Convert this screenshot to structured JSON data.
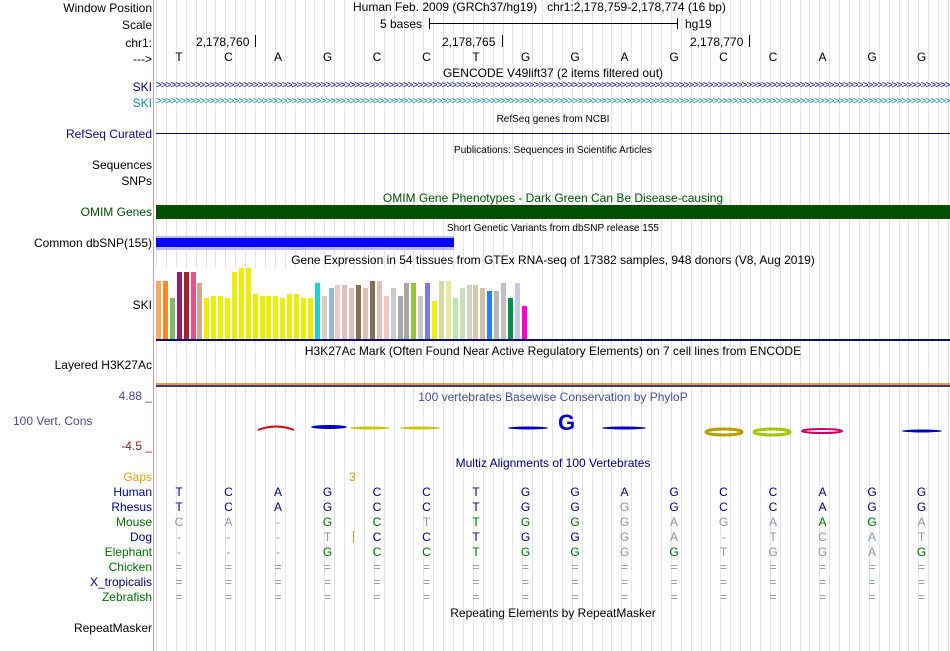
{
  "header": {
    "window_position_label": "Window Position",
    "assembly_text": "Human Feb. 2009 (GRCh37/hg19)",
    "position_text": "chr1:2,178,759-2,178,774 (16 bp)",
    "scale_label": "Scale",
    "scale_text": "5 bases",
    "scale_db": "hg19",
    "chr_label": "chr1:",
    "chr_ticks": [
      "2,178,760",
      "2,178,765",
      "2,178,770"
    ],
    "strand_label": "--->",
    "bases": [
      "T",
      "C",
      "A",
      "G",
      "C",
      "C",
      "T",
      "G",
      "G",
      "A",
      "G",
      "C",
      "C",
      "A",
      "G",
      "G"
    ]
  },
  "tracks": {
    "gencode_title": "GENCODE V49lift37 (2 items filtered out)",
    "gencode_items": [
      "SKI",
      "SKI"
    ],
    "refseq_label": "RefSeq Curated",
    "refseq_title": "RefSeq genes from NCBI",
    "pubs_title": "Publications: Sequences in Scientific Articles",
    "sequences_label": "Sequences",
    "snps_label": "SNPs",
    "omim_title": "OMIM Gene Phenotypes - Dark Green Can Be Disease-causing",
    "omim_label": "OMIM Genes",
    "dbsnp_title": "Short Genetic Variants from dbSNP release 155",
    "dbsnp_label": "Common dbSNP(155)",
    "gtex_title": "Gene Expression in 54 tissues from GTEx RNA-seq of 17382 samples, 948 donors (V8, Aug 2019)",
    "gtex_label": "SKI",
    "h3k27_title": "H3K27Ac Mark (Often Found Near Active Regulatory Elements) on 7 cell lines from ENCODE",
    "h3k27_label": "Layered H3K27Ac",
    "phylop_title": "100 vertebrates Basewise Conservation by PhyloP",
    "phylop_max": "4.88 _",
    "phylop_label": "100 Vert. Cons",
    "phylop_min": "-4.5 _",
    "multiz_title": "Multiz Alignments of 100 Vertebrates",
    "gaps_label": "Gaps",
    "gaps_value": "3",
    "repeat_title": "Repeating Elements by RepeatMasker",
    "repeat_label": "RepeatMasker"
  },
  "gtex_values": [
    0.82,
    0.82,
    0.58,
    0.95,
    0.95,
    0.95,
    0.79,
    0.58,
    0.61,
    0.61,
    0.58,
    0.95,
    1.0,
    1.0,
    0.64,
    0.61,
    0.61,
    0.61,
    0.58,
    0.64,
    0.64,
    0.58,
    0.58,
    0.79,
    0.61,
    0.72,
    0.76,
    0.76,
    0.72,
    0.76,
    0.72,
    0.82,
    0.82,
    0.61,
    0.72,
    0.61,
    0.79,
    0.79,
    0.61,
    0.79,
    0.54,
    0.82,
    0.82,
    0.58,
    0.72,
    0.76,
    0.76,
    0.72,
    0.68,
    0.68,
    0.79,
    0.58,
    0.79,
    0.47
  ],
  "gtex_colors": [
    "#f4a95b",
    "#f68b23",
    "#7eb670",
    "#9b1f68",
    "#ad1f2b",
    "#e8508b",
    "#ccaa8c",
    "#eeee00",
    "#eeee00",
    "#eeee00",
    "#eeee00",
    "#eeee00",
    "#eeee00",
    "#eeee00",
    "#eeee00",
    "#eeee00",
    "#eeee00",
    "#eeee00",
    "#eeee00",
    "#eeee00",
    "#eeee00",
    "#eeee00",
    "#eeee00",
    "#1fd1d1",
    "#d8cfc1",
    "#94b9d6",
    "#f0c8c4",
    "#e0c0bc",
    "#e0c0bc",
    "#8a6e52",
    "#e0c0bc",
    "#8a6e52",
    "#e0c0bc",
    "#f2c8c0",
    "#c4d0d0",
    "#a8a8a8",
    "#a8a8a8",
    "#99c43a",
    "#c8c8c8",
    "#7777ff",
    "#f4f000",
    "#d8d8a8",
    "#e8e8a0",
    "#b8e8b0",
    "#c8e0c0",
    "#d8d0c8",
    "#d8c8b0",
    "#d0c0a8",
    "#2a7fff",
    "#b8b8b8",
    "#c0c0c0",
    "#009050",
    "#c8c8e8",
    "#ff00cc"
  ],
  "multiz": [
    {
      "name": "Human",
      "color": "#000080",
      "bases": [
        "T",
        "C",
        "A",
        "G",
        "C",
        "C",
        "T",
        "G",
        "G",
        "A",
        "G",
        "C",
        "C",
        "A",
        "G",
        "G"
      ],
      "shade": [
        0,
        0,
        0,
        0,
        0,
        0,
        0,
        0,
        0,
        0,
        0,
        0,
        0,
        0,
        0,
        0
      ]
    },
    {
      "name": "Rhesus",
      "color": "#000080",
      "bases": [
        "T",
        "C",
        "A",
        "G",
        "C",
        "C",
        "T",
        "G",
        "G",
        "G",
        "G",
        "C",
        "C",
        "A",
        "G",
        "G"
      ],
      "shade": [
        0,
        0,
        0,
        0,
        0,
        0,
        0,
        0,
        0,
        1,
        0,
        0,
        0,
        0,
        0,
        0
      ]
    },
    {
      "name": "Mouse",
      "color": "#007000",
      "bases": [
        "C",
        "A",
        "-",
        "G",
        "C",
        "T",
        "T",
        "G",
        "G",
        "G",
        "A",
        "G",
        "A",
        "A",
        "G",
        "A"
      ],
      "shade": [
        1,
        1,
        1,
        0,
        0,
        1,
        0,
        0,
        0,
        1,
        1,
        1,
        1,
        0,
        0,
        1
      ]
    },
    {
      "name": "Dog",
      "color": "#000080",
      "bases": [
        "-",
        "-",
        "-",
        "T",
        "C",
        "C",
        "T",
        "G",
        "G",
        "G",
        "A",
        "-",
        "T",
        "C",
        "A",
        "T"
      ],
      "shade": [
        1,
        1,
        1,
        1,
        0,
        0,
        0,
        0,
        0,
        1,
        1,
        1,
        1,
        1,
        1,
        1
      ]
    },
    {
      "name": "Elephant",
      "color": "#007000",
      "bases": [
        "-",
        "-",
        "-",
        "G",
        "C",
        "C",
        "T",
        "G",
        "G",
        "G",
        "G",
        "T",
        "G",
        "G",
        "A",
        "G"
      ],
      "shade": [
        1,
        1,
        1,
        0,
        0,
        0,
        0,
        0,
        0,
        1,
        0,
        1,
        1,
        1,
        1,
        0
      ]
    },
    {
      "name": "Chicken",
      "color": "#007000",
      "bases": [
        "=",
        "=",
        "=",
        "=",
        "=",
        "=",
        "=",
        "=",
        "=",
        "=",
        "=",
        "=",
        "=",
        "=",
        "=",
        "="
      ],
      "shade": [
        1,
        1,
        1,
        1,
        1,
        1,
        1,
        1,
        1,
        1,
        1,
        1,
        1,
        1,
        1,
        1
      ]
    },
    {
      "name": "X_tropicalis",
      "color": "#000080",
      "bases": [
        "=",
        "=",
        "=",
        "=",
        "=",
        "=",
        "=",
        "=",
        "=",
        "=",
        "=",
        "=",
        "=",
        "=",
        "=",
        "="
      ],
      "shade": [
        1,
        1,
        1,
        1,
        1,
        1,
        1,
        1,
        1,
        1,
        1,
        1,
        1,
        1,
        1,
        1
      ]
    },
    {
      "name": "Zebrafish",
      "color": "#007000",
      "bases": [
        "=",
        "=",
        "=",
        "=",
        "=",
        "=",
        "=",
        "=",
        "=",
        "=",
        "=",
        "=",
        "=",
        "=",
        "=",
        "="
      ],
      "shade": [
        1,
        1,
        1,
        1,
        1,
        1,
        1,
        1,
        1,
        1,
        1,
        1,
        1,
        1,
        1,
        1
      ]
    }
  ],
  "colors": {
    "omim": "#005000",
    "dbsnp": "#0000ff",
    "gencode_1": "#000080",
    "gencode_2": "#0b8aa3",
    "refseq": "#0c0c78",
    "gaps": "#e0a000",
    "phylop_label": "#4a4a98"
  }
}
